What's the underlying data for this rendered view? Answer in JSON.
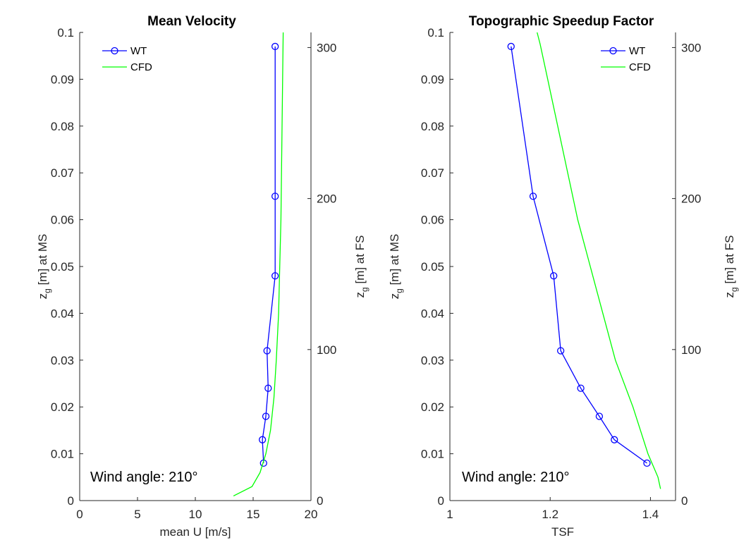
{
  "chart_data": [
    {
      "type": "line",
      "title": "Mean Velocity",
      "xlabel": "mean U [m/s]",
      "ylabel_main": "z",
      "ylabel_sub": "g",
      "ylabel_rest": " [m] at MS",
      "y2label_main": "z",
      "y2label_sub": "g",
      "y2label_rest": " [m] at FS",
      "xlim": [
        0,
        20
      ],
      "ylim": [
        0,
        0.1
      ],
      "y2lim": [
        0,
        310
      ],
      "xticks": [
        "0",
        "5",
        "10",
        "15",
        "20"
      ],
      "yticks": [
        "0",
        "0.01",
        "0.02",
        "0.03",
        "0.04",
        "0.05",
        "0.06",
        "0.07",
        "0.08",
        "0.09",
        "0.1"
      ],
      "y2ticks": [
        "0",
        "100",
        "200",
        "300"
      ],
      "legend_position": "top-left",
      "annotation": "Wind angle: 210°",
      "series": [
        {
          "name": "WT",
          "color": "#0000ff",
          "marker": "circle",
          "points": [
            [
              15.9,
              0.008
            ],
            [
              15.8,
              0.013
            ],
            [
              16.1,
              0.018
            ],
            [
              16.3,
              0.024
            ],
            [
              16.2,
              0.032
            ],
            [
              16.9,
              0.048
            ],
            [
              16.9,
              0.065
            ],
            [
              16.9,
              0.097
            ]
          ]
        },
        {
          "name": "CFD",
          "color": "#00ff00",
          "marker": "none",
          "points": [
            [
              13.3,
              0.001
            ],
            [
              14.9,
              0.003
            ],
            [
              15.6,
              0.006
            ],
            [
              16.1,
              0.01
            ],
            [
              16.5,
              0.015
            ],
            [
              16.8,
              0.022
            ],
            [
              17.0,
              0.03
            ],
            [
              17.2,
              0.04
            ],
            [
              17.3,
              0.05
            ],
            [
              17.4,
              0.06
            ],
            [
              17.45,
              0.07
            ],
            [
              17.5,
              0.08
            ],
            [
              17.55,
              0.09
            ],
            [
              17.6,
              0.1
            ]
          ]
        }
      ]
    },
    {
      "type": "line",
      "title": "Topographic Speedup Factor",
      "xlabel": "TSF",
      "ylabel_main": "z",
      "ylabel_sub": "g",
      "ylabel_rest": " [m] at MS",
      "y2label_main": "z",
      "y2label_sub": "g",
      "y2label_rest": " [m] at FS",
      "xlim": [
        1,
        1.45
      ],
      "ylim": [
        0,
        0.1
      ],
      "y2lim": [
        0,
        310
      ],
      "xticks": [
        "1",
        "1.2",
        "1.4"
      ],
      "yticks": [
        "0",
        "0.01",
        "0.02",
        "0.03",
        "0.04",
        "0.05",
        "0.06",
        "0.07",
        "0.08",
        "0.09",
        "0.1"
      ],
      "y2ticks": [
        "0",
        "100",
        "200",
        "300"
      ],
      "legend_position": "top-right",
      "annotation": "Wind angle: 210°",
      "series": [
        {
          "name": "WT",
          "color": "#0000ff",
          "marker": "circle",
          "points": [
            [
              1.393,
              0.008
            ],
            [
              1.328,
              0.013
            ],
            [
              1.298,
              0.018
            ],
            [
              1.261,
              0.024
            ],
            [
              1.221,
              0.032
            ],
            [
              1.207,
              0.048
            ],
            [
              1.166,
              0.065
            ],
            [
              1.122,
              0.097
            ]
          ]
        },
        {
          "name": "CFD",
          "color": "#00ff00",
          "marker": "none",
          "points": [
            [
              1.42,
              0.0025
            ],
            [
              1.415,
              0.005
            ],
            [
              1.395,
              0.01
            ],
            [
              1.365,
              0.02
            ],
            [
              1.33,
              0.03
            ],
            [
              1.305,
              0.04
            ],
            [
              1.28,
              0.05
            ],
            [
              1.255,
              0.06
            ],
            [
              1.235,
              0.07
            ],
            [
              1.215,
              0.08
            ],
            [
              1.195,
              0.09
            ],
            [
              1.18,
              0.0975
            ],
            [
              1.174,
              0.1
            ]
          ]
        }
      ]
    }
  ]
}
